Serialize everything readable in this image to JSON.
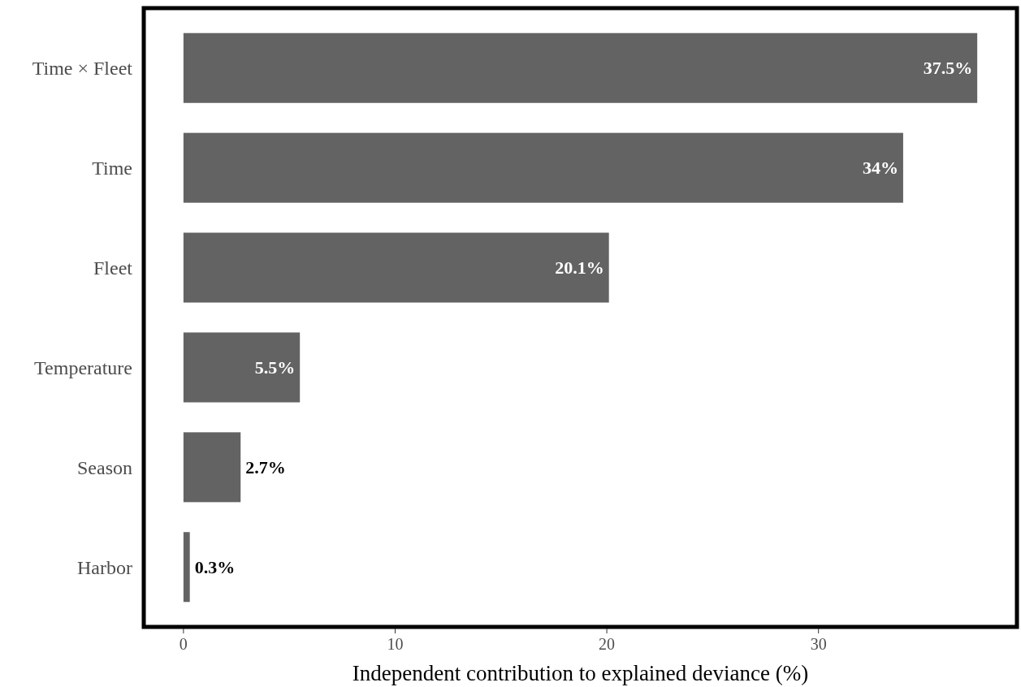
{
  "chart_data": {
    "type": "bar",
    "orientation": "horizontal",
    "xlabel": "Independent contribution to explained deviance (%)",
    "categories": [
      "Time × Fleet",
      "Time",
      "Fleet",
      "Temperature",
      "Season",
      "Harbor"
    ],
    "values": [
      37.5,
      34,
      20.1,
      5.5,
      2.7,
      0.3
    ],
    "value_labels": [
      "37.5%",
      "34%",
      "20.1%",
      "5.5%",
      "2.7%",
      "0.3%"
    ],
    "color": "#636363",
    "xlim": [
      -1.875,
      39.375
    ],
    "xticks": [
      0,
      10,
      20,
      30
    ],
    "grid": false
  }
}
